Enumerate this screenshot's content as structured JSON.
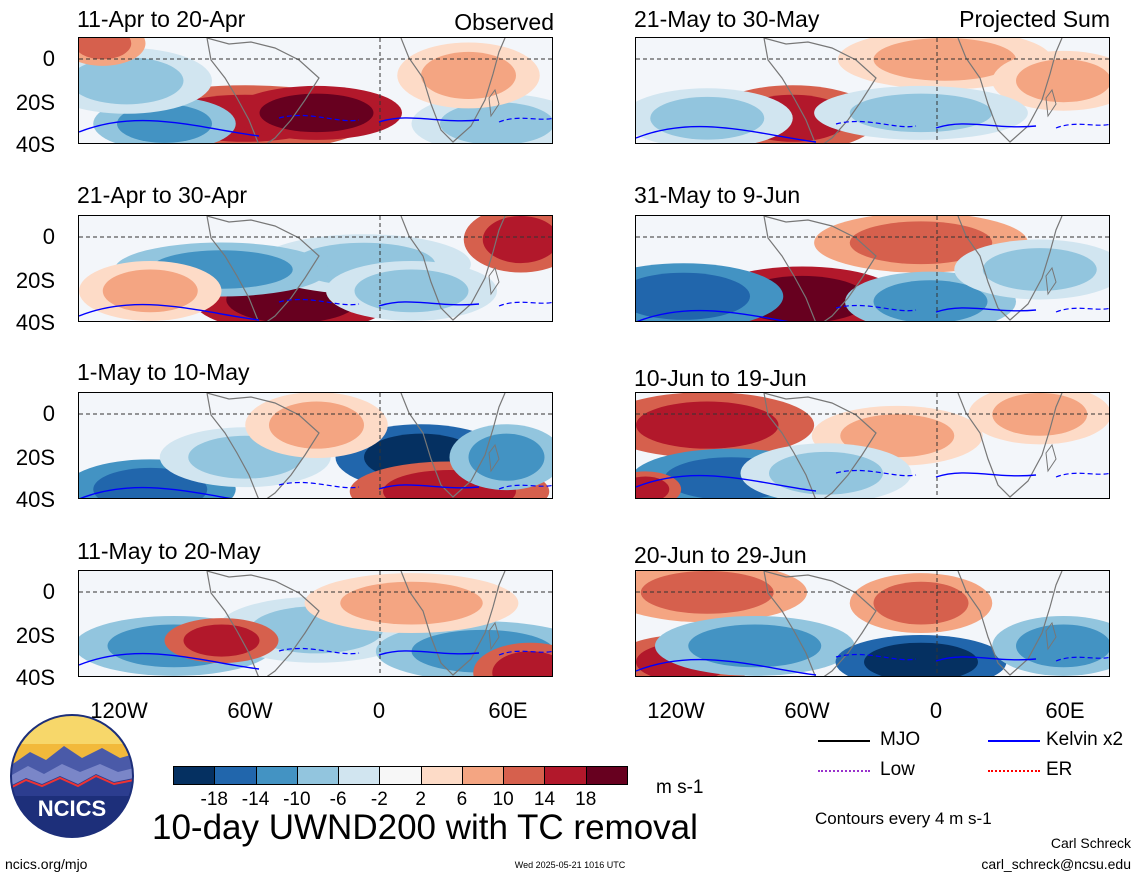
{
  "panels_left": [
    {
      "title": "11-Apr to 20-Apr",
      "tag": "Observed"
    },
    {
      "title": "21-Apr to 30-Apr",
      "tag": ""
    },
    {
      "title": "1-May to 10-May",
      "tag": ""
    },
    {
      "title": "11-May to 20-May",
      "tag": ""
    }
  ],
  "panels_right": [
    {
      "title": "21-May to 30-May",
      "tag": "Projected Sum"
    },
    {
      "title": "31-May to 9-Jun",
      "tag": ""
    },
    {
      "title": "10-Jun to 19-Jun",
      "tag": ""
    },
    {
      "title": "20-Jun to 29-Jun",
      "tag": ""
    }
  ],
  "y_ticks": [
    "0",
    "20S",
    "40S"
  ],
  "x_ticks": [
    "120W",
    "60W",
    "0",
    "60E"
  ],
  "legend": {
    "mjo": "MJO",
    "kelvin": "Kelvin x2",
    "low": "Low",
    "er": "ER",
    "colors": {
      "mjo": "#000000",
      "kelvin": "#0000ff",
      "low": "#9932cc",
      "er": "#ff0000"
    }
  },
  "colorbar": {
    "labels": [
      "-18",
      "-14",
      "-10",
      "-6",
      "-2",
      "2",
      "6",
      "10",
      "14",
      "18"
    ],
    "colors": [
      "#053061",
      "#2166ac",
      "#4393c3",
      "#92c5de",
      "#d1e5f0",
      "#f7f7f7",
      "#fddbc7",
      "#f4a582",
      "#d6604d",
      "#b2182b",
      "#67001f"
    ],
    "units": "m s-1"
  },
  "main_title": "10-day UWND200 with TC removal",
  "contour_note": "Contours every 4 m s-1",
  "author": "Carl Schreck",
  "email": "carl_schreck@ncsu.edu",
  "website": "ncics.org/mjo",
  "timestamp": "Wed 2025-05-21 1016 UTC",
  "logo_text": "NCICS"
}
